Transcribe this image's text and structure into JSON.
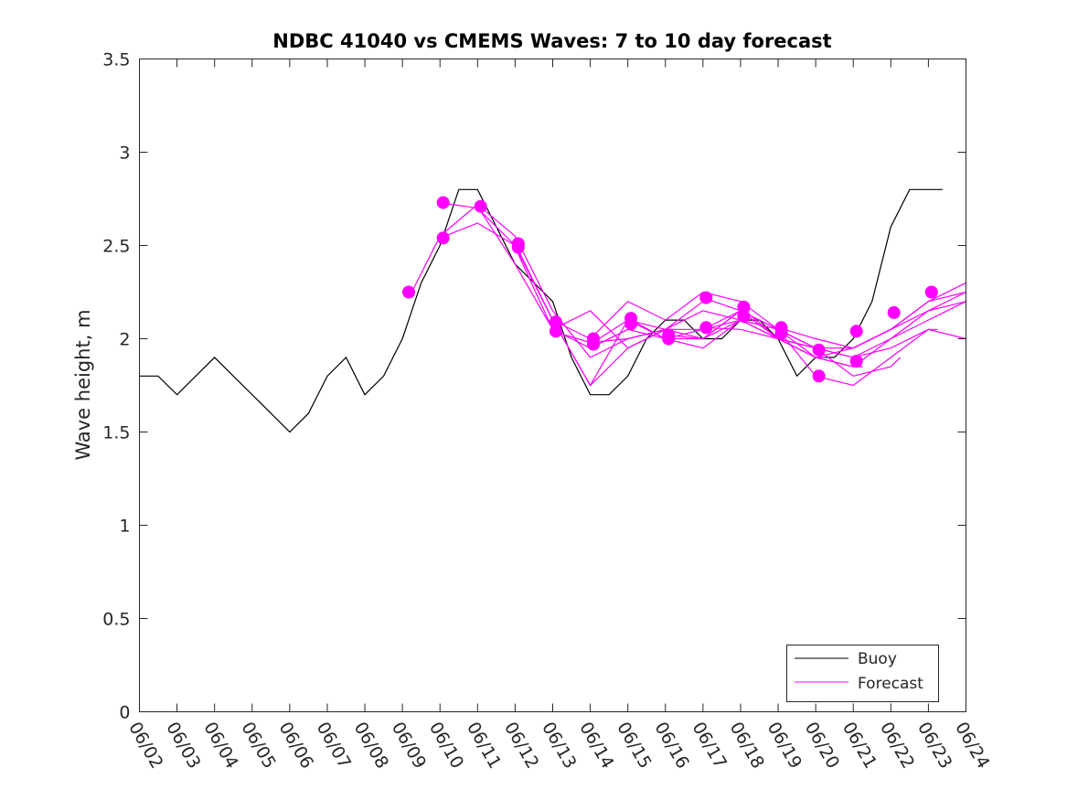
{
  "chart_data": {
    "type": "line",
    "title": "NDBC 41040 vs CMEMS Waves: 7 to 10 day forecast",
    "xlabel": "",
    "ylabel": "Wave height, m",
    "xlim": [
      "06/02",
      "06/24"
    ],
    "ylim": [
      0,
      3.5
    ],
    "yticks": [
      0,
      0.5,
      1,
      1.5,
      2,
      2.5,
      3,
      3.5
    ],
    "ytick_labels": [
      "0",
      "0.5",
      "1",
      "1.5",
      "2",
      "2.5",
      "3",
      "3.5"
    ],
    "xtick_labels": [
      "06/02",
      "06/03",
      "06/04",
      "06/05",
      "06/06",
      "06/07",
      "06/08",
      "06/09",
      "06/10",
      "06/11",
      "06/12",
      "06/13",
      "06/14",
      "06/15",
      "06/16",
      "06/17",
      "06/18",
      "06/19",
      "06/20",
      "06/21",
      "06/22",
      "06/23",
      "06/24"
    ],
    "grid": false,
    "legend_position": "bottom-right",
    "colors": {
      "buoy": "#000000",
      "forecast": "#ff00ff",
      "axis": "#262626"
    },
    "series": [
      {
        "name": "Buoy",
        "color": "#000000",
        "x": [
          "06/02 00:00",
          "06/02 12:00",
          "06/03 00:00",
          "06/03 12:00",
          "06/04 00:00",
          "06/04 12:00",
          "06/05 00:00",
          "06/05 12:00",
          "06/06 00:00",
          "06/06 12:00",
          "06/07 00:00",
          "06/07 12:00",
          "06/08 00:00",
          "06/08 12:00",
          "06/09 00:00",
          "06/09 12:00",
          "06/10 00:00",
          "06/10 12:00",
          "06/11 00:00",
          "06/11 12:00",
          "06/12 00:00",
          "06/12 12:00",
          "06/13 00:00",
          "06/13 12:00",
          "06/14 00:00",
          "06/14 12:00",
          "06/15 00:00",
          "06/15 12:00",
          "06/16 00:00",
          "06/16 12:00",
          "06/17 00:00",
          "06/17 12:00",
          "06/18 00:00",
          "06/18 12:00",
          "06/19 00:00",
          "06/19 12:00",
          "06/20 00:00",
          "06/20 12:00",
          "06/21 00:00",
          "06/21 12:00",
          "06/22 00:00",
          "06/22 12:00",
          "06/23 00:00",
          "06/23 09:00"
        ],
        "values": [
          1.8,
          1.8,
          1.7,
          1.8,
          1.9,
          1.8,
          1.7,
          1.6,
          1.5,
          1.6,
          1.8,
          1.9,
          1.7,
          1.8,
          2.0,
          2.3,
          2.5,
          2.8,
          2.8,
          2.6,
          2.4,
          2.3,
          2.2,
          1.9,
          1.7,
          1.7,
          1.8,
          2.0,
          2.1,
          2.1,
          2.0,
          2.0,
          2.1,
          2.1,
          2.0,
          1.8,
          1.9,
          1.9,
          2.0,
          2.2,
          2.6,
          2.8,
          2.8,
          2.8
        ]
      },
      {
        "name": "Forecast",
        "color": "#ff00ff",
        "runs": [
          {
            "x": [
              "06/09 06:00",
              "06/10 00:00",
              "06/11 00:00",
              "06/12 00:00",
              "06/13 00:00",
              "06/14 00:00",
              "06/15 00:00",
              "06/16 00:00",
              "06/16 06:00"
            ],
            "values": [
              2.25,
              2.55,
              2.72,
              2.55,
              2.15,
              1.9,
              2.0,
              2.05,
              2.05
            ]
          },
          {
            "x": [
              "06/10 00:00",
              "06/11 00:00",
              "06/12 00:00",
              "06/13 00:00",
              "06/14 00:00",
              "06/15 00:00",
              "06/16 00:00",
              "06/17 00:00",
              "06/17 06:00"
            ],
            "values": [
              2.54,
              2.62,
              2.5,
              2.1,
              1.75,
              2.1,
              2.05,
              2.2,
              2.2
            ]
          },
          {
            "x": [
              "06/10 00:00",
              "06/11 00:00",
              "06/12 00:00",
              "06/13 00:00",
              "06/14 00:00",
              "06/15 00:00",
              "06/16 00:00",
              "06/17 00:00",
              "06/18 00:00",
              "06/18 06:00"
            ],
            "values": [
              2.73,
              2.7,
              2.5,
              2.1,
              1.75,
              1.95,
              2.05,
              2.0,
              2.15,
              2.15
            ]
          },
          {
            "x": [
              "06/11 00:00",
              "06/12 00:00",
              "06/13 00:00",
              "06/14 00:00",
              "06/15 00:00",
              "06/16 00:00",
              "06/17 00:00",
              "06/18 00:00",
              "06/19 00:00",
              "06/19 06:00"
            ],
            "values": [
              2.71,
              2.4,
              2.05,
              2.15,
              1.95,
              2.05,
              2.15,
              2.1,
              2.05,
              2.05
            ]
          },
          {
            "x": [
              "06/12 00:00",
              "06/13 00:00",
              "06/14 00:00",
              "06/15 00:00",
              "06/16 00:00",
              "06/17 00:00",
              "06/18 00:00",
              "06/19 00:00",
              "06/20 00:00",
              "06/20 06:00"
            ],
            "values": [
              2.51,
              2.1,
              2.0,
              2.2,
              2.1,
              2.25,
              2.2,
              2.05,
              1.9,
              1.9
            ]
          },
          {
            "x": [
              "06/12 00:00",
              "06/13 00:00",
              "06/14 00:00",
              "06/15 00:00",
              "06/16 00:00",
              "06/17 00:00",
              "06/18 00:00",
              "06/19 00:00",
              "06/20 00:00",
              "06/21 00:00",
              "06/21 06:00"
            ],
            "values": [
              2.49,
              2.05,
              1.95,
              2.05,
              2.0,
              2.05,
              2.1,
              2.0,
              1.9,
              1.85,
              1.85
            ]
          },
          {
            "x": [
              "06/13 00:00",
              "06/14 00:00",
              "06/15 00:00",
              "06/16 00:00",
              "06/17 00:00",
              "06/18 00:00",
              "06/19 00:00",
              "06/20 00:00",
              "06/21 00:00",
              "06/22 00:00",
              "06/22 06:00"
            ],
            "values": [
              2.04,
              1.98,
              2.0,
              2.05,
              2.05,
              2.15,
              2.05,
              1.95,
              1.8,
              1.85,
              1.9
            ]
          },
          {
            "x": [
              "06/14 00:00",
              "06/15 00:00",
              "06/16 00:00",
              "06/17 00:00",
              "06/18 00:00",
              "06/19 00:00",
              "06/20 00:00",
              "06/21 00:00",
              "06/22 00:00",
              "06/23 00:00",
              "06/23 06:00"
            ],
            "values": [
              1.97,
              2.1,
              2.0,
              2.0,
              2.15,
              2.05,
              1.8,
              1.75,
              1.9,
              2.05,
              2.05
            ]
          },
          {
            "x": [
              "06/15 00:00",
              "06/16 00:00",
              "06/17 00:00",
              "06/18 00:00",
              "06/19 00:00",
              "06/20 00:00",
              "06/21 00:00",
              "06/22 00:00",
              "06/23 00:00",
              "06/24 00:00"
            ],
            "values": [
              2.11,
              2.0,
              1.95,
              2.1,
              2.0,
              1.95,
              1.95,
              2.05,
              2.15,
              2.2
            ]
          },
          {
            "x": [
              "06/16 00:00",
              "06/17 00:00",
              "06/18 00:00",
              "06/19 00:00",
              "06/20 00:00",
              "06/21 00:00",
              "06/22 00:00",
              "06/23 00:00",
              "06/24 00:00"
            ],
            "values": [
              2.02,
              2.0,
              2.1,
              2.05,
              1.95,
              1.9,
              2.0,
              2.1,
              2.2
            ]
          },
          {
            "x": [
              "06/17 00:00",
              "06/18 00:00",
              "06/19 00:00",
              "06/20 00:00",
              "06/21 00:00",
              "06/22 00:00",
              "06/23 00:00",
              "06/24 00:00"
            ],
            "values": [
              2.06,
              2.05,
              2.0,
              1.95,
              1.9,
              1.95,
              2.05,
              2.0
            ]
          },
          {
            "x": [
              "06/17 00:00",
              "06/18 00:00",
              "06/19 00:00",
              "06/20 00:00",
              "06/21 00:00",
              "06/22 00:00",
              "06/23 00:00",
              "06/24 00:00"
            ],
            "values": [
              2.22,
              2.15,
              2.0,
              1.9,
              1.85,
              2.0,
              2.15,
              2.25
            ]
          },
          {
            "x": [
              "06/18 00:00",
              "06/19 00:00",
              "06/20 00:00",
              "06/21 00:00",
              "06/22 00:00",
              "06/23 00:00",
              "06/24 00:00"
            ],
            "values": [
              2.17,
              2.0,
              1.9,
              1.95,
              2.05,
              2.2,
              2.25
            ]
          },
          {
            "x": [
              "06/19 00:00",
              "06/20 00:00",
              "06/21 00:00",
              "06/22 00:00",
              "06/23 00:00",
              "06/24 00:00"
            ],
            "values": [
              2.06,
              2.0,
              1.95,
              2.05,
              2.2,
              2.3
            ]
          }
        ],
        "markers": [
          {
            "x": "06/09 04:00",
            "y": 2.25
          },
          {
            "x": "06/10 02:00",
            "y": 2.73
          },
          {
            "x": "06/10 02:00",
            "y": 2.54
          },
          {
            "x": "06/11 02:00",
            "y": 2.71
          },
          {
            "x": "06/12 02:00",
            "y": 2.51
          },
          {
            "x": "06/12 02:00",
            "y": 2.49
          },
          {
            "x": "06/13 02:00",
            "y": 2.09
          },
          {
            "x": "06/13 02:00",
            "y": 2.04
          },
          {
            "x": "06/14 02:00",
            "y": 2.0
          },
          {
            "x": "06/14 02:00",
            "y": 1.97
          },
          {
            "x": "06/15 02:00",
            "y": 2.11
          },
          {
            "x": "06/15 02:00",
            "y": 2.08
          },
          {
            "x": "06/16 02:00",
            "y": 2.02
          },
          {
            "x": "06/16 02:00",
            "y": 2.0
          },
          {
            "x": "06/17 02:00",
            "y": 2.22
          },
          {
            "x": "06/17 02:00",
            "y": 2.06
          },
          {
            "x": "06/18 02:00",
            "y": 2.17
          },
          {
            "x": "06/18 02:00",
            "y": 2.12
          },
          {
            "x": "06/19 02:00",
            "y": 2.06
          },
          {
            "x": "06/19 02:00",
            "y": 2.03
          },
          {
            "x": "06/20 02:00",
            "y": 1.94
          },
          {
            "x": "06/20 02:00",
            "y": 1.8
          },
          {
            "x": "06/21 02:00",
            "y": 2.04
          },
          {
            "x": "06/21 02:00",
            "y": 1.88
          },
          {
            "x": "06/22 02:00",
            "y": 2.14
          },
          {
            "x": "06/23 02:00",
            "y": 2.25
          }
        ]
      }
    ]
  }
}
